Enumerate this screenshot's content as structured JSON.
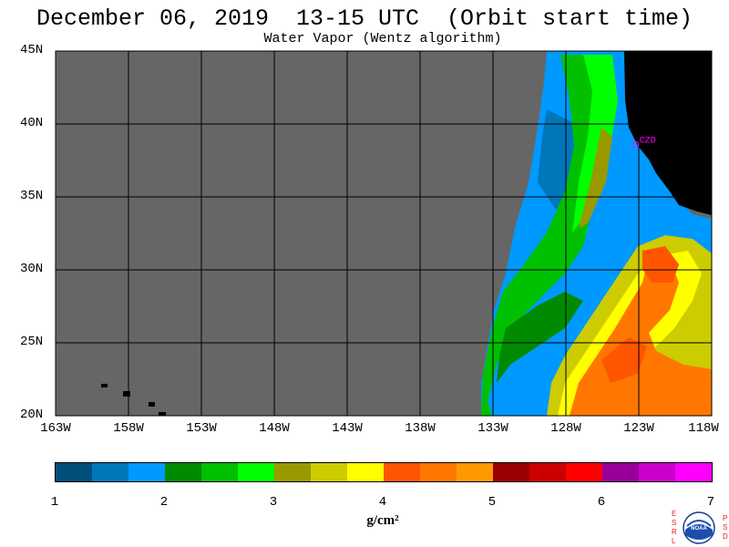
{
  "header": {
    "title": "December 06, 2019  13-15 UTC  (Orbit start time)",
    "subtitle": "Water Vapor (Wentz algorithm)"
  },
  "map": {
    "lat_labels": [
      "45N",
      "40N",
      "35N",
      "30N",
      "25N",
      "20N"
    ],
    "lon_labels": [
      "163W",
      "158W",
      "153W",
      "148W",
      "143W",
      "138W",
      "133W",
      "128W",
      "123W",
      "118W"
    ],
    "lat_range": [
      20,
      45
    ],
    "lon_range": [
      -163,
      -118
    ],
    "marker": {
      "label": "CZD",
      "lat": 38.6,
      "lon": -123.2,
      "color": "#ff00ff"
    },
    "colors": {
      "no_data": "#666666",
      "land": "#000000",
      "grid": "#000000"
    }
  },
  "colorbar": {
    "ticks": [
      "1",
      "2",
      "3",
      "4",
      "5",
      "6",
      "7"
    ],
    "units": "g/cm²",
    "colors": [
      "#004f7a",
      "#0077bb",
      "#0099ff",
      "#008a00",
      "#00c000",
      "#00ff00",
      "#999900",
      "#cccc00",
      "#ffff00",
      "#ff5500",
      "#ff7700",
      "#ff9900",
      "#990000",
      "#cc0000",
      "#ff0000",
      "#990099",
      "#cc00cc",
      "#ff00ff"
    ]
  },
  "logo": {
    "left_letters": [
      "E",
      "S",
      "R",
      "L"
    ],
    "right_letters": [
      "P",
      "S",
      "D"
    ],
    "emblem": "NOAA"
  }
}
